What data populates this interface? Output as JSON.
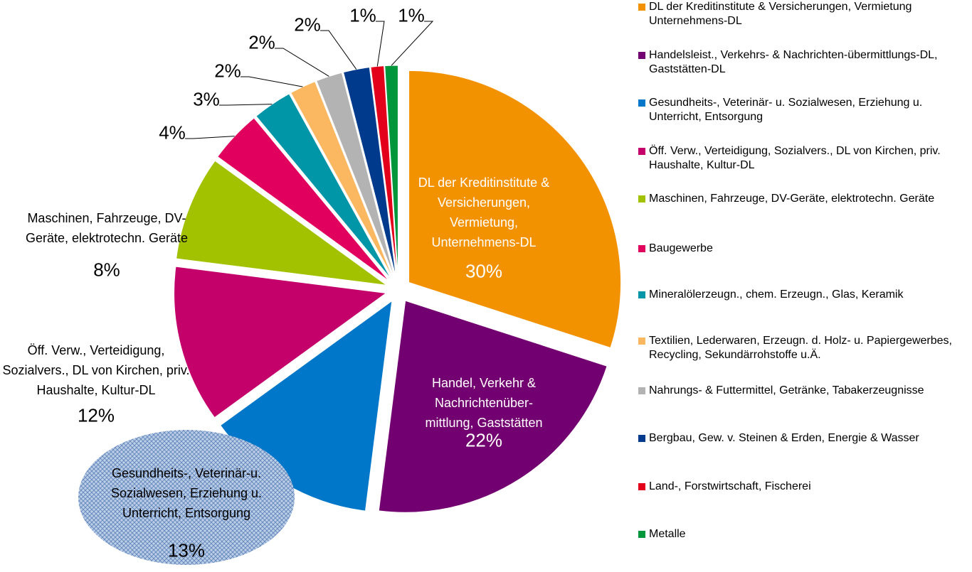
{
  "chart_data": {
    "type": "pie",
    "categories": [
      "DL der Kreditinstitute & Versicherungen, Vermietung Unternehmens-DL",
      "Handelsleist., Verkehrs- & Nachrichten-übermittlungs-DL, Gaststätten-DL",
      "Gesundheits-, Veterinär- u. Sozialwesen, Erziehung u. Unterricht, Entsorgung",
      "Öff. Verw., Verteidigung, Sozialvers., DL von Kirchen, priv. Haushalte, Kultur-DL",
      "Maschinen, Fahrzeuge, DV-Geräte, elektrotechn. Geräte",
      "Baugewerbe",
      "Mineralölerzeugn., chem. Erzeugn., Glas, Keramik",
      "Textilien, Lederwaren, Erzeugn. d. Holz- u. Papiergewerbes, Recycling, Sekundärrohstoffe u.Ä.",
      "Nahrungs- & Futtermittel, Getränke, Tabakerzeugnisse",
      "Bergbau, Gew. v. Steinen & Erden, Energie & Wasser",
      "Land-, Forstwirtschaft, Fischerei",
      "Metalle"
    ],
    "slice_labels": [
      "DL der Kreditinstitute & Versicherungen, Vermietung, Unternehmens-DL",
      "Handel, Verkehr & Nachrichtenüber-mittlung, Gaststätten",
      "Gesundheits-, Veterinär-u. Sozialwesen, Erziehung u. Unterricht, Entsorgung",
      "Öff. Verw., Verteidigung, Sozialvers., DL von Kirchen, priv. Haushalte, Kultur-DL",
      "Maschinen, Fahrzeuge, DV-Geräte, elektrotechn. Geräte",
      null,
      null,
      null,
      null,
      null,
      null,
      null
    ],
    "values": [
      30,
      22,
      13,
      12,
      8,
      4,
      3,
      2,
      2,
      2,
      1,
      1
    ],
    "value_labels": [
      "30%",
      "22%",
      "13%",
      "12%",
      "8%",
      "4%",
      "3%",
      "2%",
      "2%",
      "2%",
      "1%",
      "1%"
    ],
    "colors": [
      "#f39200",
      "#730070",
      "#0077c8",
      "#c4006b",
      "#a2c200",
      "#e2005e",
      "#0096a8",
      "#fbb860",
      "#b3b3b3",
      "#003a8c",
      "#e2001a",
      "#00963c"
    ],
    "legend": "right"
  }
}
